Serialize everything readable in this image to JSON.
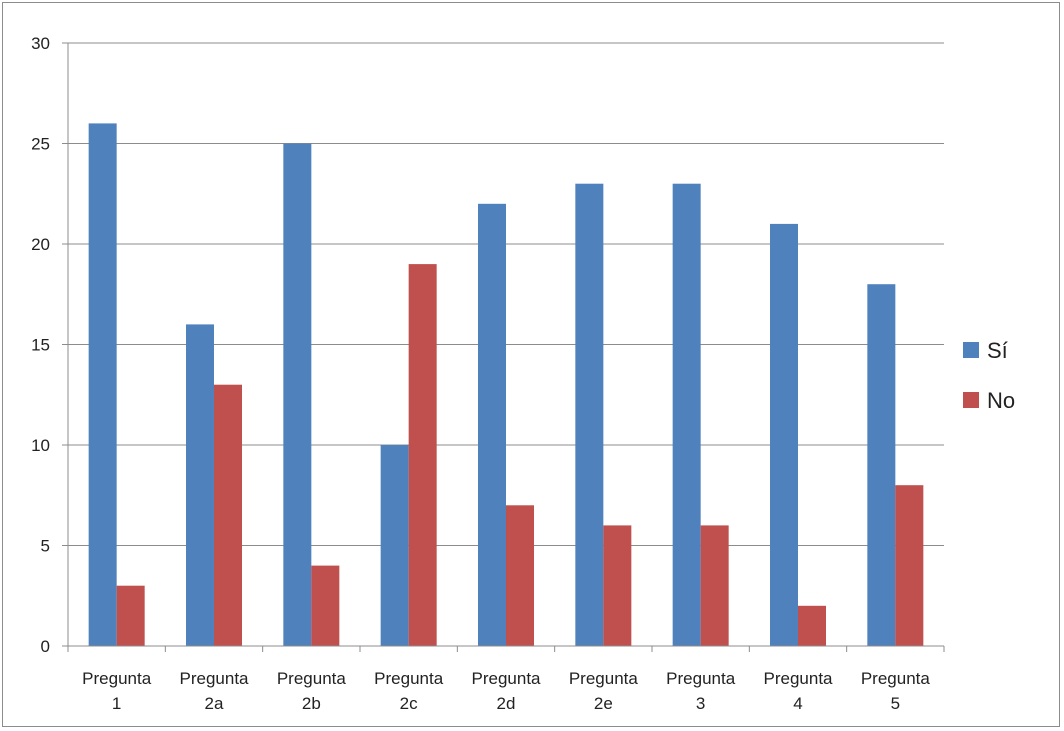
{
  "chart_data": {
    "type": "bar",
    "categories": [
      [
        "Pregunta",
        "1"
      ],
      [
        "Pregunta",
        "2a"
      ],
      [
        "Pregunta",
        "2b"
      ],
      [
        "Pregunta",
        "2c"
      ],
      [
        "Pregunta",
        "2d"
      ],
      [
        "Pregunta",
        "2e"
      ],
      [
        "Pregunta",
        "3"
      ],
      [
        "Pregunta",
        "4"
      ],
      [
        "Pregunta",
        "5"
      ]
    ],
    "series": [
      {
        "name": "Sí",
        "color": "#4f81bd",
        "values": [
          26,
          16,
          25,
          10,
          22,
          23,
          23,
          21,
          18
        ]
      },
      {
        "name": "No",
        "color": "#c0504d",
        "values": [
          3,
          13,
          4,
          19,
          7,
          6,
          6,
          2,
          8
        ]
      }
    ],
    "ylim": [
      0,
      30
    ],
    "yticks": [
      0,
      5,
      10,
      15,
      20,
      25,
      30
    ],
    "grid": true,
    "legend_position": "right",
    "title": "",
    "xlabel": "",
    "ylabel": ""
  }
}
